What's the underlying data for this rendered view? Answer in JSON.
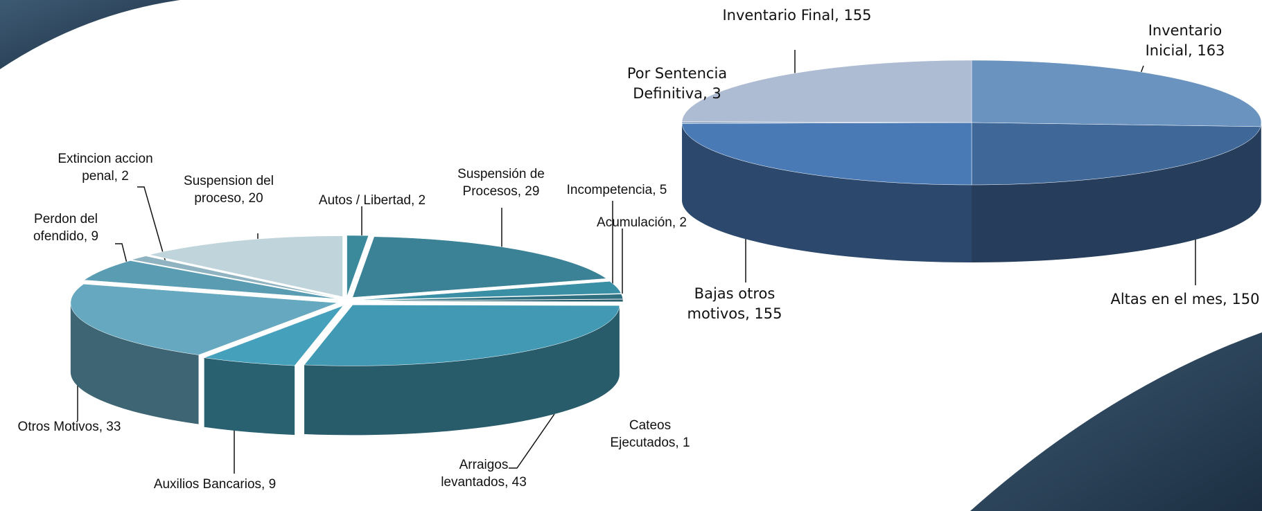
{
  "chart_data": [
    {
      "type": "pie3d",
      "value_labels": [
        "Autos / Libertad, 2",
        "Suspensión de Procesos, 29",
        "Incompetencia, 5",
        "Acumulación, 2",
        "Cateos Ejecutados, 1",
        "Arraigos levantados, 43",
        "Auxilios Bancarios, 9",
        "Otros Motivos, 33",
        "Perdon del ofendido, 9",
        "Extincion accion penal, 2",
        "Suspension del proceso, 20"
      ],
      "values": [
        2,
        29,
        5,
        2,
        1,
        43,
        9,
        33,
        9,
        2,
        20
      ],
      "colors": [
        "#3a8a9c",
        "#3b8296",
        "#3a8fa5",
        "#2f6f80",
        "#2a5f6e",
        "#4299b3",
        "#45a1bb",
        "#65a8bf",
        "#5a9db3",
        "#8fb3c0",
        "#c0d4dc"
      ]
    },
    {
      "type": "pie3d",
      "value_labels": [
        "Inventario Inicial, 163",
        "Altas en el mes, 150",
        "Bajas otros motivos, 155",
        "Por Sentencia Definitiva, 3",
        "Inventario Final, 155"
      ],
      "values": [
        163,
        150,
        155,
        3,
        155
      ],
      "colors": [
        "#6a93c0",
        "#3f6899",
        "#4a7ab5",
        "#9fb3cc",
        "#adbbd3"
      ]
    }
  ]
}
